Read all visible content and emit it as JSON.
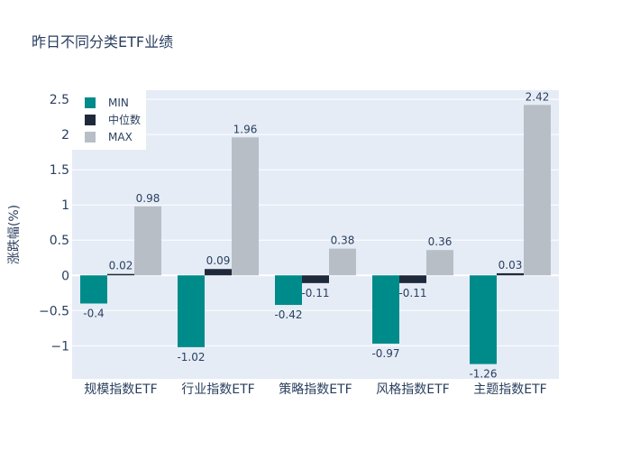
{
  "chart_data": {
    "type": "bar",
    "title": "昨日不同分类ETF业绩",
    "xlabel": "",
    "ylabel": "涨跌幅(%)",
    "categories": [
      "规模指数ETF",
      "行业指数ETF",
      "策略指数ETF",
      "风格指数ETF",
      "主题指数ETF"
    ],
    "series": [
      {
        "name": "MIN",
        "values": [
          -0.4,
          -1.02,
          -0.42,
          -0.97,
          -1.26
        ],
        "color": "#008b8b"
      },
      {
        "name": "中位数",
        "values": [
          0.02,
          0.09,
          -0.11,
          -0.11,
          0.03
        ],
        "color": "#1e2a3c"
      },
      {
        "name": "MAX",
        "values": [
          0.98,
          1.96,
          0.38,
          0.36,
          2.42
        ],
        "color": "#b8bec6"
      }
    ],
    "ylim": [
      -1.47,
      2.63
    ],
    "yticks": [
      -1,
      -0.5,
      0,
      0.5,
      1,
      1.5,
      2,
      2.5
    ],
    "ytick_labels": [
      "−1",
      "−0.5",
      "0",
      "0.5",
      "1",
      "1.5",
      "2",
      "2.5"
    ],
    "grid": true,
    "legend_position": "top-left",
    "plot_background": "#e5ecf6"
  }
}
